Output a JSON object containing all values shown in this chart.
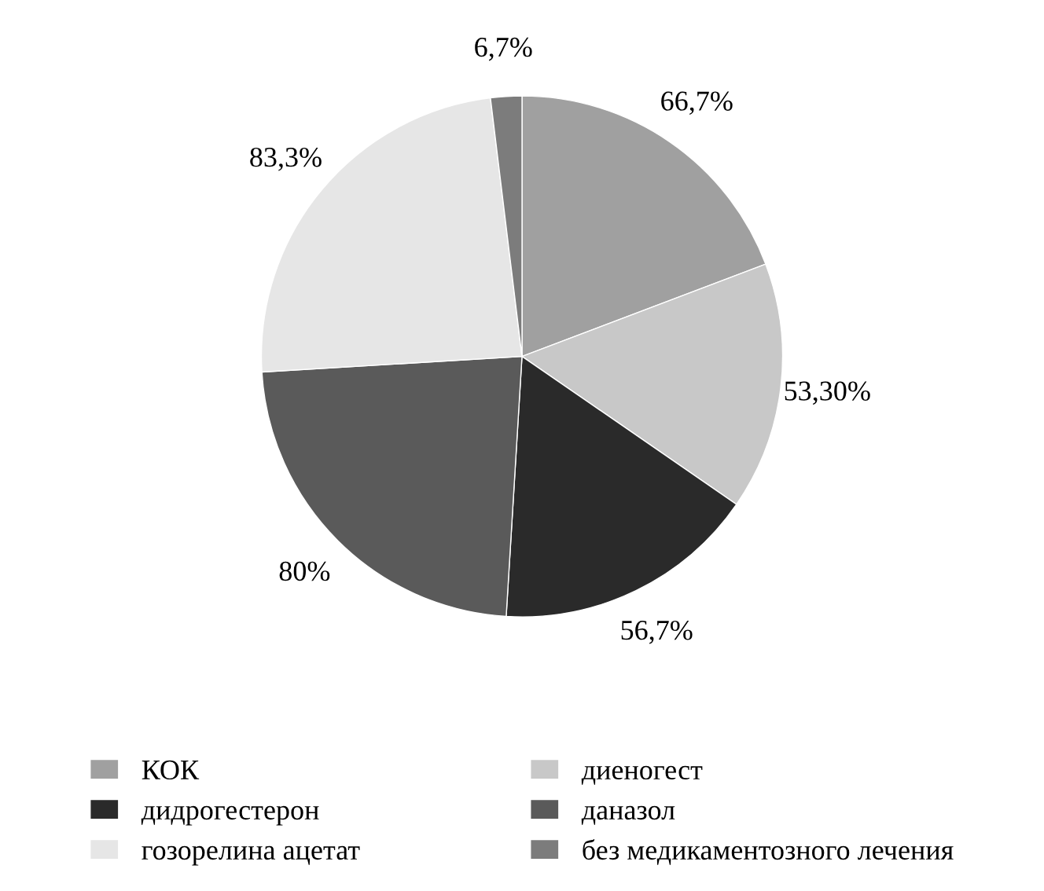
{
  "chart_data": {
    "type": "pie",
    "categories": [
      "КОК",
      "диеногест",
      "дидрогестерон",
      "даназол",
      "гозорелина ацетат",
      "без медикаментозного лечения"
    ],
    "values": [
      66.7,
      53.3,
      56.7,
      80,
      83.3,
      6.7
    ],
    "value_labels": [
      "66,7%",
      "53,30%",
      "56,7%",
      "80%",
      "83,3%",
      "6,7%"
    ],
    "colors": [
      "#a0a0a0",
      "#c8c8c8",
      "#2a2a2a",
      "#5a5a5a",
      "#e6e6e6",
      "#7c7c7c"
    ],
    "legend": "bottom"
  }
}
